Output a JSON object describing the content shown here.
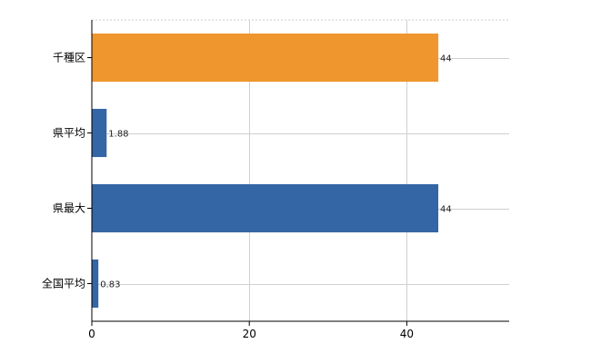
{
  "chart_data": {
    "type": "bar",
    "orientation": "horizontal",
    "categories": [
      "千種区",
      "県平均",
      "県最大",
      "全国平均"
    ],
    "values": [
      44,
      1.88,
      44,
      0.83
    ],
    "value_labels": [
      "44",
      "1.88",
      "44",
      "0.83"
    ],
    "bar_colors": [
      "#F0962E",
      "#3465A4",
      "#3465A4",
      "#3465A4"
    ],
    "xlim": [
      0,
      53
    ],
    "x_ticks": [
      0,
      20,
      40
    ],
    "x_tick_labels": [
      "0",
      "20",
      "40"
    ],
    "grid": true,
    "title": "",
    "xlabel": "",
    "ylabel": ""
  }
}
